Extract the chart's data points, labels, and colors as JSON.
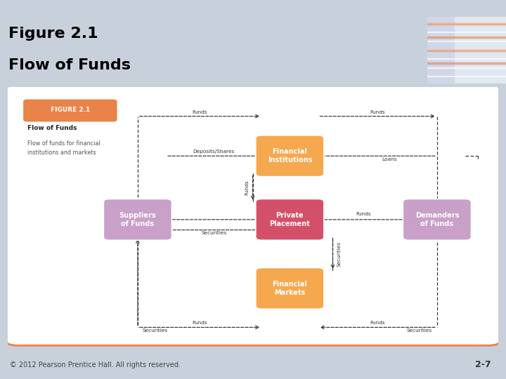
{
  "title_line1": "Figure 2.1",
  "title_line2": "Flow of Funds",
  "header_bg": "#E8834A",
  "outer_bg": "#C8D0DC",
  "figure_panel_border": "#E8834A",
  "figure_label": "FIGURE 2.1",
  "figure_label_bg": "#E8834A",
  "desc_title": "Flow of Funds",
  "desc_body": "Flow of funds for financial\ninstitutions and markets",
  "color_fi": "#F5A84E",
  "color_su": "#C8A0C8",
  "color_pp": "#D4506A",
  "color_de": "#C8A0C8",
  "color_fm": "#F5A84E",
  "footer_text": "© 2012 Pearson Prentice Hall. All rights reserved.",
  "footer_page": "2-7"
}
